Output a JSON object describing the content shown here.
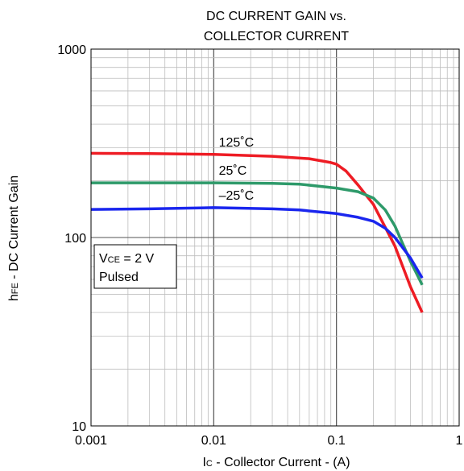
{
  "chart_data": {
    "type": "line",
    "title_lines": [
      "DC CURRENT GAIN vs.",
      "COLLECTOR CURRENT"
    ],
    "xlabel": {
      "main": "I",
      "sub": "C",
      "rest": " - Collector Current - (A)"
    },
    "ylabel": {
      "main": "h",
      "sub": "FE",
      "rest": " - DC Current Gain"
    },
    "x_scale": "log",
    "y_scale": "log",
    "xlim": [
      0.001,
      1
    ],
    "ylim": [
      10,
      1000
    ],
    "x_ticks": [
      {
        "value": 0.001,
        "label": "0.001"
      },
      {
        "value": 0.01,
        "label": "0.01"
      },
      {
        "value": 0.1,
        "label": "0.1"
      },
      {
        "value": 1,
        "label": "1"
      }
    ],
    "y_ticks": [
      {
        "value": 10,
        "label": "10"
      },
      {
        "value": 100,
        "label": "100"
      },
      {
        "value": 1000,
        "label": "1000"
      }
    ],
    "grid": true,
    "annotation": {
      "line1_main": "V",
      "line1_sub": "CE",
      "line1_rest": " = 2 V",
      "line2": "Pulsed"
    },
    "series": [
      {
        "name": "125˚C",
        "color": "#ee1c24",
        "x": [
          0.001,
          0.003,
          0.01,
          0.03,
          0.06,
          0.09,
          0.1,
          0.12,
          0.15,
          0.2,
          0.3,
          0.4,
          0.5
        ],
        "y": [
          280,
          279,
          276,
          270,
          262,
          250,
          245,
          225,
          190,
          150,
          90,
          55,
          40
        ]
      },
      {
        "name": "25˚C",
        "color": "#2e9a6a",
        "x": [
          0.001,
          0.003,
          0.01,
          0.03,
          0.05,
          0.1,
          0.15,
          0.2,
          0.25,
          0.3,
          0.4,
          0.5
        ],
        "y": [
          195,
          195,
          195,
          194,
          192,
          183,
          175,
          162,
          140,
          115,
          75,
          56
        ]
      },
      {
        "name": "–25˚C",
        "color": "#1a26ee",
        "x": [
          0.001,
          0.003,
          0.01,
          0.03,
          0.05,
          0.1,
          0.15,
          0.2,
          0.25,
          0.3,
          0.4,
          0.5
        ],
        "y": [
          141,
          142,
          144,
          142,
          140,
          134,
          128,
          122,
          112,
          100,
          78,
          61
        ]
      }
    ]
  }
}
